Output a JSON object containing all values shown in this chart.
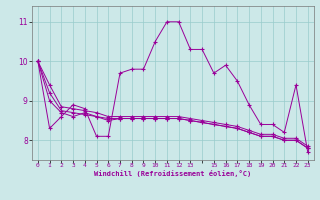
{
  "xlabel": "Windchill (Refroidissement éolien,°C)",
  "bg_color": "#cce8e8",
  "line_color": "#990099",
  "grid_color": "#99cccc",
  "series": [
    [
      10.0,
      8.3,
      8.6,
      8.9,
      8.8,
      8.1,
      8.1,
      9.7,
      9.8,
      9.8,
      10.5,
      11.0,
      11.0,
      10.3,
      10.3,
      9.7,
      9.9,
      9.5,
      8.9,
      8.4,
      8.4,
      8.2,
      9.4,
      7.7
    ],
    [
      10.0,
      9.0,
      8.7,
      8.6,
      8.7,
      8.6,
      8.5,
      8.55,
      8.55,
      8.55,
      8.55,
      8.55,
      8.55,
      8.5,
      8.45,
      8.4,
      8.35,
      8.3,
      8.2,
      8.1,
      8.1,
      8.0,
      8.0,
      7.8
    ],
    [
      10.0,
      9.2,
      8.75,
      8.7,
      8.65,
      8.6,
      8.55,
      8.55,
      8.55,
      8.55,
      8.55,
      8.55,
      8.55,
      8.5,
      8.45,
      8.4,
      8.35,
      8.3,
      8.2,
      8.1,
      8.1,
      8.0,
      8.0,
      7.8
    ],
    [
      10.0,
      9.4,
      8.85,
      8.8,
      8.75,
      8.7,
      8.6,
      8.6,
      8.6,
      8.6,
      8.6,
      8.6,
      8.6,
      8.55,
      8.5,
      8.45,
      8.4,
      8.35,
      8.25,
      8.15,
      8.15,
      8.05,
      8.05,
      7.85
    ]
  ],
  "yticks": [
    8,
    9,
    10,
    11
  ],
  "ylim": [
    7.5,
    11.4
  ],
  "xlim": [
    -0.5,
    23.5
  ]
}
